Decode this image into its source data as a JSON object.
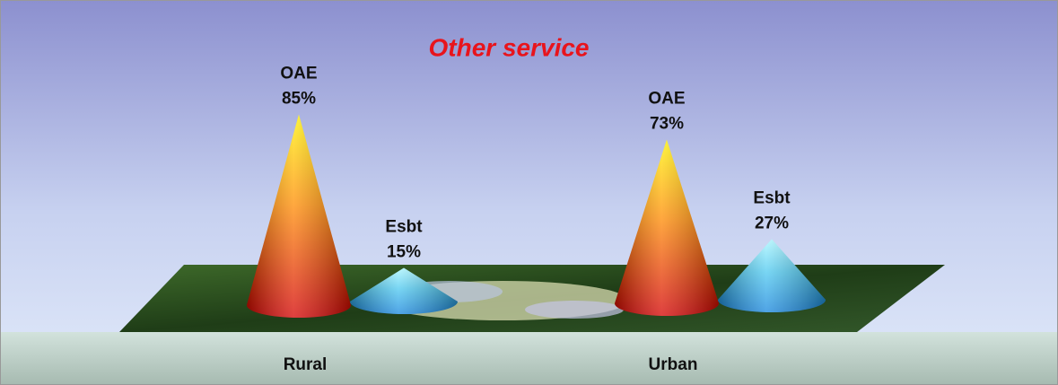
{
  "chart_data": {
    "type": "cone",
    "title": "Other service",
    "categories": [
      "Rural",
      "Urban"
    ],
    "series": [
      {
        "name": "OAE",
        "color": "#d40000",
        "values": [
          85,
          73
        ],
        "value_labels": [
          "85%",
          "73%"
        ]
      },
      {
        "name": "Esbt",
        "color": "#1585dd",
        "values": [
          15,
          27
        ],
        "value_labels": [
          "15%",
          "27%"
        ]
      }
    ]
  }
}
